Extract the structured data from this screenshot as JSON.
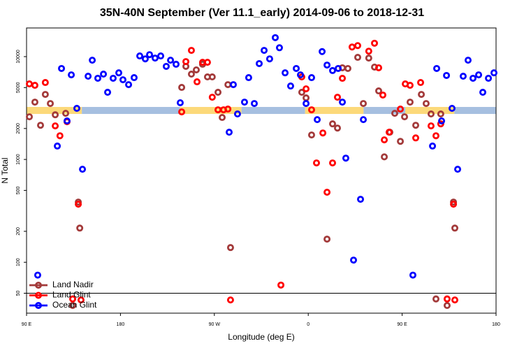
{
  "chart_data": {
    "type": "scatter",
    "title": "35N-40N September (Ver 11.1_early)   2014-09-06 to 2018-12-31",
    "x_label": "Longitude (deg E)",
    "y_label": "N Total",
    "xlim": [
      90,
      540
    ],
    "xticks": [
      {
        "value": 90,
        "label": "90 E"
      },
      {
        "value": 180,
        "label": "180"
      },
      {
        "value": 270,
        "label": "90 W"
      },
      {
        "value": 360,
        "label": "0"
      },
      {
        "value": 450,
        "label": "90 E"
      },
      {
        "value": 540,
        "label": "180"
      }
    ],
    "ylim": [
      32,
      19000
    ],
    "log_y": true,
    "yticks": [
      50,
      100,
      200,
      500,
      1000,
      2000,
      5000,
      10000
    ],
    "hline": 50,
    "legend": "lower left",
    "band": {
      "ylim": [
        2770,
        3240
      ],
      "segments": [
        {
          "x": [
            90,
            143
          ],
          "color": "#fcd97a"
        },
        {
          "x": [
            143,
            237
          ],
          "color": "#a6bfe0"
        },
        {
          "x": [
            237,
            296
          ],
          "color": "#fcd97a"
        },
        {
          "x": [
            296,
            357
          ],
          "color": "#a6bfe0"
        },
        {
          "x": [
            357,
            413
          ],
          "color": "#fcd97a"
        },
        {
          "x": [
            413,
            453
          ],
          "color": "#a6bfe0"
        },
        {
          "x": [
            453,
            500
          ],
          "color": "#fcd97a"
        },
        {
          "x": [
            500,
            540
          ],
          "color": "#a6bfe0"
        }
      ]
    },
    "series": [
      {
        "name": "Land Nadir",
        "color": "#a33a3a",
        "x": [
          92.7,
          98,
          103.4,
          108,
          112.8,
          117.5,
          127.5,
          139.6,
          141,
          134.2,
          238.7,
          242.7,
          248,
          252.7,
          258.7,
          263.4,
          268,
          273.5,
          277.5,
          283,
          285.5,
          353.8,
          357.9,
          363.2,
          378,
          383.3,
          388,
          392.7,
          398,
          407.4,
          412.8,
          418,
          423.5,
          427.5,
          432.9,
          438.2,
          442.9,
          448.3,
          452.3,
          457.6,
          463,
          468.4,
          473,
          477.7,
          487,
          499.2,
          500.5,
          482.4,
          493.1
        ],
        "values": [
          2600,
          3610,
          2150,
          4290,
          3500,
          2720,
          2810,
          385,
          215,
          38,
          5020,
          8040,
          6760,
          7430,
          8430,
          6350,
          6350,
          4500,
          2560,
          5340,
          139,
          4500,
          3970,
          1730,
          168,
          2220,
          2020,
          7790,
          7670,
          9840,
          3500,
          9680,
          7910,
          4640,
          1060,
          1840,
          2810,
          1500,
          2600,
          3610,
          2150,
          4290,
          3500,
          2770,
          2770,
          385,
          215,
          44,
          38
        ]
      },
      {
        "name": "Land Glint",
        "color": "#ff0000",
        "x": [
          92.7,
          98,
          108,
          117.5,
          122,
          128.8,
          139.6,
          134.2,
          142.2,
          238.7,
          242.7,
          248,
          253.4,
          258.7,
          263.4,
          268,
          273.5,
          278.8,
          283,
          285.5,
          333.8,
          353.8,
          357.9,
          363.2,
          367.9,
          374,
          378,
          383.3,
          388,
          392.7,
          402,
          407.4,
          418,
          423.5,
          427.5,
          431.5,
          432.9,
          437.5,
          448.3,
          453,
          457.6,
          463,
          467.7,
          477.7,
          482.4,
          487,
          499.2,
          493.1,
          500.5
        ],
        "values": [
          5430,
          5260,
          5600,
          2120,
          1700,
          2330,
          367,
          44,
          43,
          2900,
          8950,
          11500,
          5690,
          8810,
          8810,
          4030,
          3040,
          3040,
          3090,
          43,
          60,
          6350,
          4860,
          3040,
          925,
          1810,
          480,
          925,
          4030,
          6150,
          12400,
          12800,
          11300,
          13500,
          7790,
          4230,
          1550,
          1840,
          3090,
          5430,
          5260,
          1620,
          5600,
          2120,
          1700,
          2220,
          367,
          44,
          43
        ]
      },
      {
        "name": "Ocean Glint",
        "color": "#0000ff",
        "x": [
          100.7,
          119.5,
          123.5,
          128.8,
          132.9,
          138.2,
          143.6,
          149,
          153,
          158.3,
          163.7,
          167.7,
          173,
          178.4,
          182.4,
          187.8,
          193.1,
          198.5,
          203.8,
          207.9,
          213.2,
          218.6,
          223.9,
          228,
          233.3,
          237.3,
          288.2,
          284.2,
          292.2,
          298.9,
          302.9,
          308.3,
          313,
          317.7,
          323,
          328.4,
          332.4,
          337.8,
          343.1,
          348.5,
          352.5,
          357.9,
          363.2,
          368.6,
          373.3,
          378,
          383.3,
          388.7,
          392.7,
          396,
          403.4,
          410.1,
          412.8,
          460.3,
          479.1,
          483.1,
          487.8,
          492.5,
          497.8,
          503.2,
          508.5,
          513.2,
          517.9,
          523.3,
          527.3,
          532.7,
          538
        ],
        "values": [
          75,
          1350,
          7670,
          2370,
          6650,
          3140,
          803,
          6450,
          9230,
          6160,
          6760,
          4500,
          6160,
          6960,
          5960,
          5340,
          6250,
          10150,
          9510,
          10450,
          9680,
          10150,
          8040,
          9230,
          8430,
          3560,
          5340,
          1840,
          2770,
          3610,
          6250,
          3500,
          8560,
          11500,
          9510,
          15300,
          12200,
          6960,
          5180,
          7670,
          6650,
          3500,
          6250,
          2440,
          11200,
          8280,
          7320,
          7670,
          3610,
          1030,
          105,
          410,
          2440,
          75,
          1350,
          7670,
          2370,
          6560,
          3140,
          803,
          6450,
          9230,
          6160,
          6650,
          4500,
          6160,
          6960
        ]
      }
    ]
  }
}
